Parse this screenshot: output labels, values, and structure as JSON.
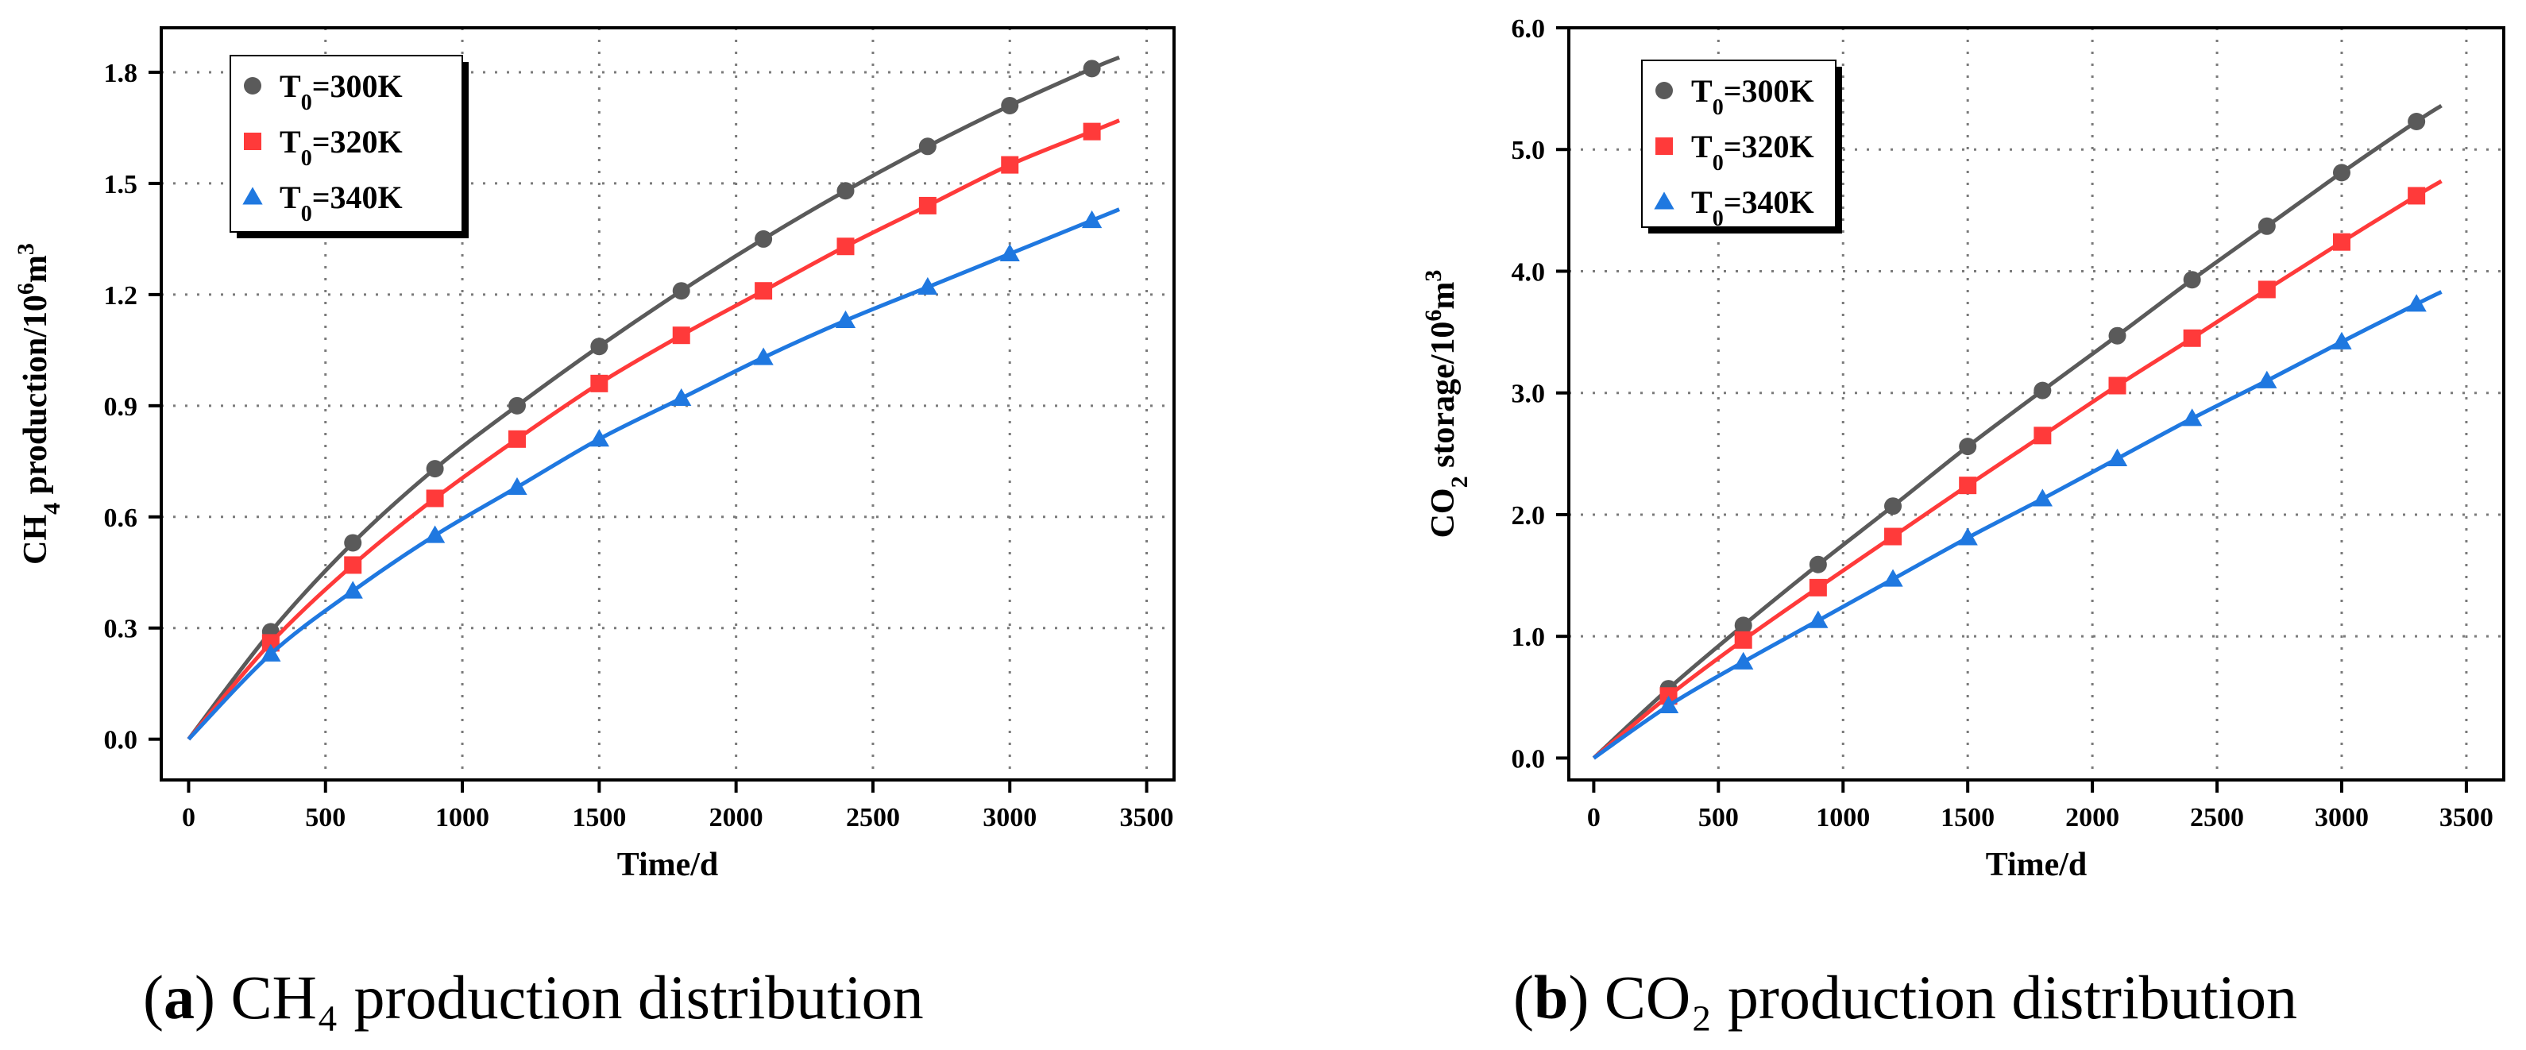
{
  "colors": {
    "s300": "#5a5a5a",
    "s320": "#ff3a3a",
    "s340": "#1f78e0",
    "grid": "#7a7a7a",
    "frame": "#000000"
  },
  "chart_data": [
    {
      "type": "line",
      "panel": "a",
      "caption": {
        "prefix": "(",
        "letter": "a",
        "suffix": ")",
        "text": "CH₄ production distribution"
      },
      "xlabel": "Time/d",
      "ylabel": {
        "main": "CH",
        "sub": "4",
        "rest": " production/10",
        "sup": "6",
        "unit": "m",
        "unitsup": "3"
      },
      "xlim": [
        -100,
        3600
      ],
      "ylim": [
        -0.11,
        1.92
      ],
      "xticks": [
        "0",
        "500",
        "1000",
        "1500",
        "2000",
        "2500",
        "3000",
        "3500"
      ],
      "yticks": [
        "0.0",
        "0.3",
        "0.6",
        "0.9",
        "1.2",
        "1.5",
        "1.8"
      ],
      "grid": true,
      "legend_position": "top-left",
      "legend": [
        {
          "pre": "T",
          "sub": "0",
          "post": "=300K",
          "marker": "circle",
          "color": "#5a5a5a"
        },
        {
          "pre": "T",
          "sub": "0",
          "post": "=320K",
          "marker": "square",
          "color": "#ff3a3a"
        },
        {
          "pre": "T",
          "sub": "0",
          "post": "=340K",
          "marker": "triangle",
          "color": "#1f78e0"
        }
      ],
      "series": [
        {
          "name": "T0=300K",
          "marker": "circle",
          "color": "#5a5a5a",
          "x": [
            300,
            600,
            900,
            1200,
            1500,
            1800,
            2100,
            2400,
            2700,
            3000,
            3300
          ],
          "y": [
            0.29,
            0.53,
            0.73,
            0.9,
            1.06,
            1.21,
            1.35,
            1.48,
            1.6,
            1.71,
            1.81
          ],
          "curve_end": [
            3400,
            1.84
          ]
        },
        {
          "name": "T0=320K",
          "marker": "square",
          "color": "#ff3a3a",
          "x": [
            300,
            600,
            900,
            1200,
            1500,
            1800,
            2100,
            2400,
            2700,
            3000,
            3300
          ],
          "y": [
            0.26,
            0.47,
            0.65,
            0.81,
            0.96,
            1.09,
            1.21,
            1.33,
            1.44,
            1.55,
            1.64
          ],
          "curve_end": [
            3400,
            1.67
          ]
        },
        {
          "name": "T0=340K",
          "marker": "triangle",
          "color": "#1f78e0",
          "x": [
            300,
            600,
            900,
            1200,
            1500,
            1800,
            2100,
            2400,
            2700,
            3000,
            3300
          ],
          "y": [
            0.23,
            0.4,
            0.55,
            0.68,
            0.81,
            0.92,
            1.03,
            1.13,
            1.22,
            1.31,
            1.4
          ],
          "curve_end": [
            3400,
            1.43
          ]
        }
      ]
    },
    {
      "type": "line",
      "panel": "b",
      "caption": {
        "prefix": "(",
        "letter": "b",
        "suffix": ")",
        "text": "CO₂ production distribution"
      },
      "xlabel": "Time/d",
      "ylabel": {
        "main": "CO",
        "sub": "2",
        "rest": " storage/10",
        "sup": "6",
        "unit": "m",
        "unitsup": "3"
      },
      "xlim": [
        -100,
        3650
      ],
      "ylim": [
        -0.18,
        6.0
      ],
      "xticks": [
        "0",
        "500",
        "1000",
        "1500",
        "2000",
        "2500",
        "3000",
        "3500"
      ],
      "yticks": [
        "0.0",
        "1.0",
        "2.0",
        "3.0",
        "4.0",
        "5.0",
        "6.0"
      ],
      "grid": true,
      "legend_position": "top-left",
      "legend": [
        {
          "pre": "T",
          "sub": "0",
          "post": "=300K",
          "marker": "circle",
          "color": "#5a5a5a"
        },
        {
          "pre": "T",
          "sub": "0",
          "post": "=320K",
          "marker": "square",
          "color": "#ff3a3a"
        },
        {
          "pre": "T",
          "sub": "0",
          "post": "=340K",
          "marker": "triangle",
          "color": "#1f78e0"
        }
      ],
      "series": [
        {
          "name": "T0=300K",
          "marker": "circle",
          "color": "#5a5a5a",
          "x": [
            300,
            600,
            900,
            1200,
            1500,
            1800,
            2100,
            2400,
            2700,
            3000,
            3300
          ],
          "y": [
            0.57,
            1.09,
            1.59,
            2.07,
            2.56,
            3.02,
            3.47,
            3.93,
            4.37,
            4.81,
            5.23
          ],
          "curve_end": [
            3400,
            5.36
          ]
        },
        {
          "name": "T0=320K",
          "marker": "square",
          "color": "#ff3a3a",
          "x": [
            300,
            600,
            900,
            1200,
            1500,
            1800,
            2100,
            2400,
            2700,
            3000,
            3300
          ],
          "y": [
            0.51,
            0.97,
            1.4,
            1.82,
            2.24,
            2.65,
            3.06,
            3.45,
            3.85,
            4.24,
            4.62
          ],
          "curve_end": [
            3400,
            4.74
          ]
        },
        {
          "name": "T0=340K",
          "marker": "triangle",
          "color": "#1f78e0",
          "x": [
            300,
            600,
            900,
            1200,
            1500,
            1800,
            2100,
            2400,
            2700,
            3000,
            3300
          ],
          "y": [
            0.43,
            0.79,
            1.13,
            1.47,
            1.81,
            2.13,
            2.46,
            2.79,
            3.1,
            3.42,
            3.73
          ],
          "curve_end": [
            3400,
            3.83
          ]
        }
      ]
    }
  ]
}
